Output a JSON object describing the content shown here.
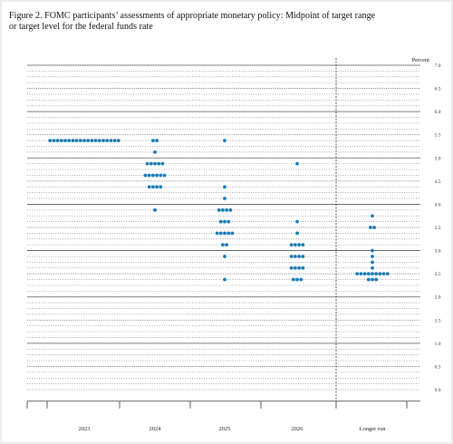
{
  "figure": {
    "title_line1": "Figure 2.  FOMC participants’ assessments of appropriate monetary policy:  Midpoint of target range",
    "title_line2": "or target level for the federal funds rate"
  },
  "chart_data": {
    "type": "scatter",
    "subtype": "dot-plot",
    "ylabel": "Percent",
    "ylim": [
      -0.25,
      7.0
    ],
    "ytick_values": [
      0.0,
      0.5,
      1.0,
      1.5,
      2.0,
      2.5,
      3.0,
      3.5,
      4.0,
      4.5,
      5.0,
      5.5,
      6.0,
      6.5,
      7.0
    ],
    "ytick_labels": [
      "0.0",
      "0.5",
      "1.0",
      "1.5",
      "2.0",
      "2.5",
      "3.0",
      "3.5",
      "4.0",
      "4.5",
      "5.0",
      "5.5",
      "6.0",
      "6.5",
      "7.0"
    ],
    "minor_grid_step": 0.125,
    "major_grid_step": 0.5,
    "categories": [
      "2023",
      "2024",
      "2025",
      "2026",
      "Longer run"
    ],
    "separator_after_category": "2026",
    "dot_color": "#1a7ab5",
    "series": [
      {
        "category": "2023",
        "dots": [
          {
            "y": 5.375,
            "count": 19
          }
        ]
      },
      {
        "category": "2024",
        "dots": [
          {
            "y": 5.375,
            "count": 2
          },
          {
            "y": 5.125,
            "count": 1
          },
          {
            "y": 4.875,
            "count": 5
          },
          {
            "y": 4.625,
            "count": 6
          },
          {
            "y": 4.375,
            "count": 4
          },
          {
            "y": 3.875,
            "count": 1
          }
        ]
      },
      {
        "category": "2025",
        "dots": [
          {
            "y": 5.375,
            "count": 1
          },
          {
            "y": 4.375,
            "count": 1
          },
          {
            "y": 4.125,
            "count": 1
          },
          {
            "y": 3.875,
            "count": 4
          },
          {
            "y": 3.625,
            "count": 3
          },
          {
            "y": 3.375,
            "count": 5
          },
          {
            "y": 3.125,
            "count": 2
          },
          {
            "y": 2.875,
            "count": 1
          },
          {
            "y": 2.375,
            "count": 1
          }
        ]
      },
      {
        "category": "2026",
        "dots": [
          {
            "y": 4.875,
            "count": 1
          },
          {
            "y": 3.625,
            "count": 1
          },
          {
            "y": 3.375,
            "count": 1
          },
          {
            "y": 3.125,
            "count": 4
          },
          {
            "y": 2.875,
            "count": 4
          },
          {
            "y": 2.625,
            "count": 4
          },
          {
            "y": 2.375,
            "count": 3
          }
        ]
      },
      {
        "category": "Longer run",
        "dots": [
          {
            "y": 3.75,
            "count": 1
          },
          {
            "y": 3.5,
            "count": 2
          },
          {
            "y": 3.0,
            "count": 1
          },
          {
            "y": 2.875,
            "count": 1
          },
          {
            "y": 2.75,
            "count": 1
          },
          {
            "y": 2.625,
            "count": 1
          },
          {
            "y": 2.5,
            "count": 9
          },
          {
            "y": 2.375,
            "count": 3
          }
        ]
      }
    ]
  }
}
